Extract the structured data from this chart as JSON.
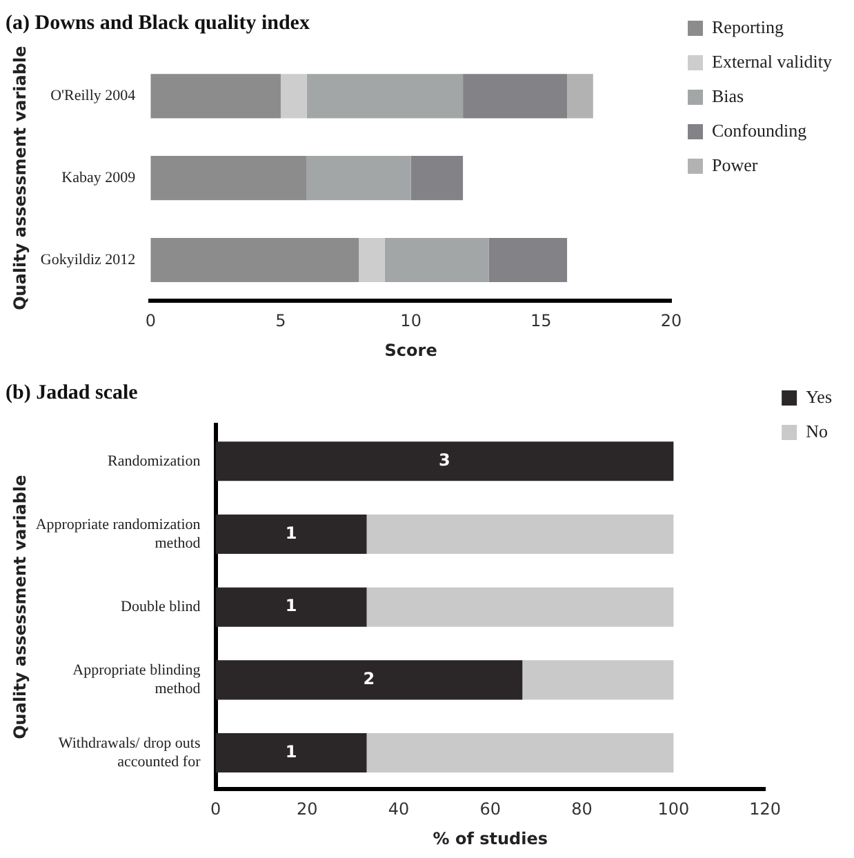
{
  "chart_data": [
    {
      "type": "bar",
      "title": "(a) Downs and Black quality index",
      "xlabel": "Score",
      "ylabel": "Quality assessment variable",
      "orientation": "horizontal",
      "stacked": true,
      "categories": [
        "O'Reilly 2004",
        "Kabay 2009",
        "Gokyildiz 2012"
      ],
      "series": [
        {
          "name": "Reporting",
          "color": "#8c8c8c",
          "values": [
            5,
            6,
            8
          ]
        },
        {
          "name": "External validity",
          "color": "#cdcdcd",
          "values": [
            1,
            0,
            1
          ]
        },
        {
          "name": "Bias",
          "color": "#a2a6a6",
          "values": [
            6,
            4,
            4
          ]
        },
        {
          "name": "Confounding",
          "color": "#828287",
          "values": [
            4,
            2,
            3
          ]
        },
        {
          "name": "Power",
          "color": "#b2b2b2",
          "values": [
            1,
            0,
            0
          ]
        }
      ],
      "xlim": [
        0,
        20
      ],
      "xticks": [
        0,
        5,
        10,
        15,
        20
      ],
      "grid": false,
      "legend": "top right"
    },
    {
      "type": "bar",
      "title": "(b) Jadad scale",
      "xlabel": "% of studies",
      "ylabel": "Quality assessment variable",
      "orientation": "horizontal",
      "stacked": true,
      "categories": [
        "Randomization",
        "Appropriate randomization method",
        "Double blind",
        "Appropriate blinding method",
        "Withdrawals/ drop outs accounted for"
      ],
      "series": [
        {
          "name": "Yes",
          "color": "#2b2627",
          "values": [
            100,
            33,
            33,
            67,
            33
          ]
        },
        {
          "name": "No",
          "color": "#c9c9c9",
          "values": [
            0,
            67,
            67,
            33,
            67
          ]
        }
      ],
      "annotations": [
        "3",
        "1",
        "1",
        "2",
        "1"
      ],
      "xlim": [
        0,
        120
      ],
      "xticks": [
        0,
        20,
        40,
        60,
        80,
        100,
        120
      ],
      "grid": false,
      "legend": "top right"
    }
  ]
}
